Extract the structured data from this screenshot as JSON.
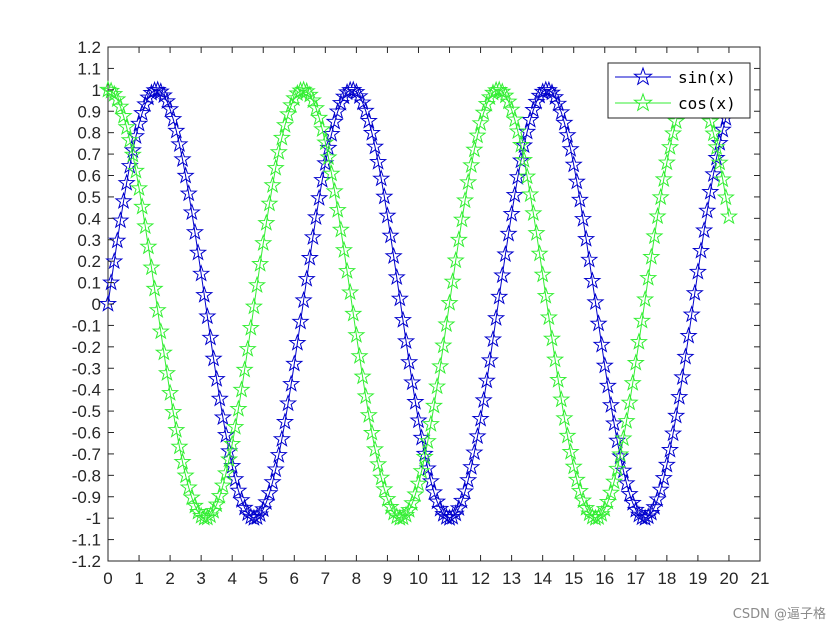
{
  "chart_data": {
    "type": "line",
    "xlim": [
      0,
      21
    ],
    "ylim": [
      -1.2,
      1.2
    ],
    "x_ticks": [
      0,
      1,
      2,
      3,
      4,
      5,
      6,
      7,
      8,
      9,
      10,
      11,
      12,
      13,
      14,
      15,
      16,
      17,
      18,
      19,
      20,
      21
    ],
    "y_ticks": [
      -1.2,
      -1.1,
      -1.0,
      -0.9,
      -0.8,
      -0.7,
      -0.6,
      -0.5,
      -0.4,
      -0.3,
      -0.2,
      -0.1,
      0,
      0.1,
      0.2,
      0.3,
      0.4,
      0.5,
      0.6,
      0.7,
      0.8,
      0.9,
      1.0,
      1.1,
      1.2
    ],
    "y_tick_labels": [
      "-1.2",
      "-1.1",
      "-1",
      "-0.9",
      "-0.8",
      "-0.7",
      "-0.6",
      "-0.5",
      "-0.4",
      "-0.3",
      "-0.2",
      "-0.1",
      "0",
      "0.1",
      "0.2",
      "0.3",
      "0.4",
      "0.5",
      "0.6",
      "0.7",
      "0.8",
      "0.9",
      "1",
      "1.1",
      "1.2"
    ],
    "grid": false,
    "legend_position": "top-right",
    "marker": "pentagram",
    "x_range": [
      0,
      20
    ],
    "x_step": 0.1,
    "series": [
      {
        "name": "sin(x)",
        "function": "sin",
        "color": "#0000CC"
      },
      {
        "name": "cos(x)",
        "function": "cos",
        "color": "#33EE33"
      }
    ]
  },
  "watermark": "CSDN @逼子格"
}
